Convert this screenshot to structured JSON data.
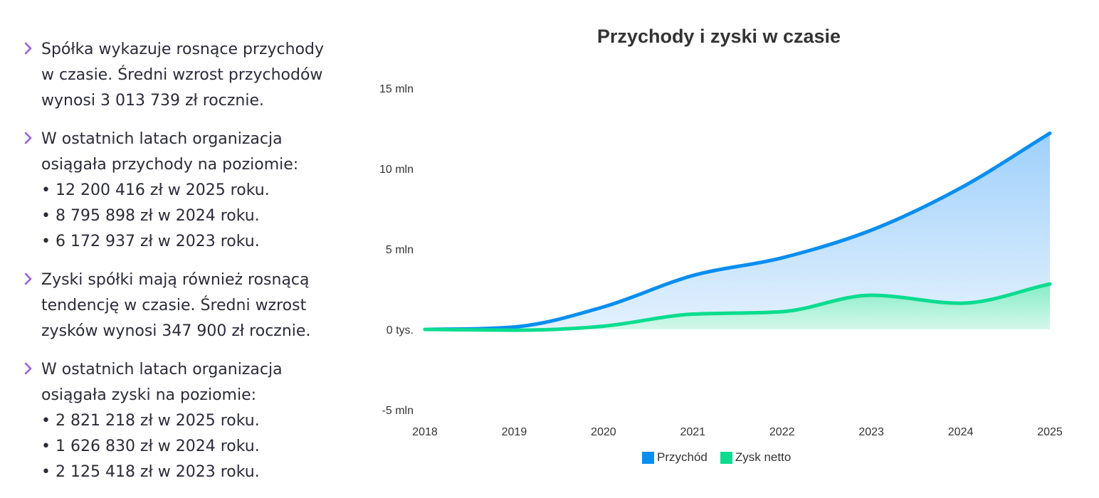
{
  "text": {
    "blocks": [
      {
        "lines": [
          "Spółka wykazuje rosnące przychody",
          "w czasie. Średni wzrost przychodów",
          "wynosi 3 013 739 zł rocznie."
        ],
        "items": []
      },
      {
        "lines": [
          "W ostatnich latach organizacja",
          "osiągała przychody na poziomie:"
        ],
        "items": [
          "• 12 200 416 zł w 2025 roku.",
          "• 8 795 898 zł w 2024 roku.",
          "• 6 172 937 zł w 2023 roku."
        ]
      },
      {
        "lines": [
          "Zyski spółki mają również rosnącą",
          "tendencję w czasie. Średni wzrost",
          "zysków wynosi 347 900 zł rocznie."
        ],
        "items": []
      },
      {
        "lines": [
          "W ostatnich latach organizacja",
          "osiągała zyski na poziomie:"
        ],
        "items": [
          "• 2 821 218 zł w 2025 roku.",
          "• 1 626 830 zł w 2024 roku.",
          "• 2 125 418 zł w 2023 roku."
        ]
      }
    ],
    "chevron_color": "#9b5de5"
  },
  "chart_data": {
    "type": "area",
    "title": "Przychody i zyski w czasie",
    "x": [
      "2018",
      "2019",
      "2020",
      "2021",
      "2022",
      "2023",
      "2024",
      "2025"
    ],
    "ylim": [
      -5000000,
      15000000
    ],
    "yticks": [
      {
        "value": 15000000,
        "label": "15 mln"
      },
      {
        "value": 10000000,
        "label": "10 mln"
      },
      {
        "value": 5000000,
        "label": "5 mln"
      },
      {
        "value": 0,
        "label": "0 tys."
      },
      {
        "value": -5000000,
        "label": "-5 mln"
      }
    ],
    "grid": false,
    "legend_position": "bottom",
    "series": [
      {
        "name": "Przychód",
        "color": "#0a8ef0",
        "fill_top": "#9fd0fb",
        "fill_bottom": "#e3f1fd",
        "values": [
          0,
          150000,
          1400000,
          3350000,
          4450000,
          6172937,
          8795898,
          12200416
        ]
      },
      {
        "name": "Zysk netto",
        "color": "#0bdc8f",
        "fill_top": "#86ecc8",
        "fill_bottom": "#d6f8ec",
        "values": [
          0,
          -50000,
          200000,
          950000,
          1100000,
          2125418,
          1626830,
          2821218
        ]
      }
    ]
  }
}
